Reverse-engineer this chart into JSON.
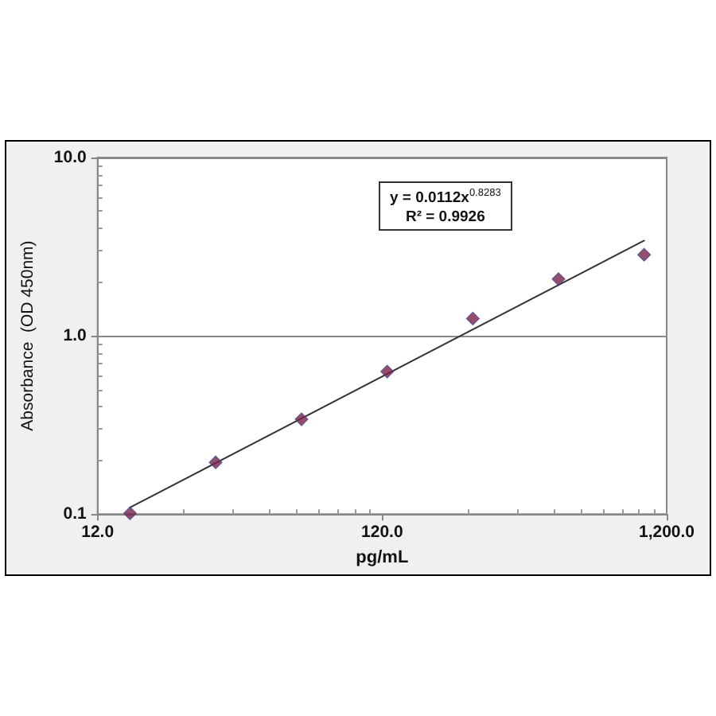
{
  "chart_data": {
    "type": "scatter",
    "xlabel": "pg/mL",
    "ylabel": "Absorbance  (OD 450nm)",
    "annotations": [
      "y = 0.0112x$^{0.8283}$",
      "R² = 0.9926"
    ],
    "log": "xy",
    "grid": "y",
    "marker": "diamond",
    "xlim": [
      12,
      1200
    ],
    "ylim": [
      0.1,
      10
    ],
    "xticks": [
      {
        "value": 12,
        "label": "12.0"
      },
      {
        "value": 24,
        "label": null
      },
      {
        "value": 36,
        "label": null
      },
      {
        "value": 48,
        "label": null
      },
      {
        "value": 60,
        "label": null
      },
      {
        "value": 72,
        "label": null
      },
      {
        "value": 84,
        "label": null
      },
      {
        "value": 96,
        "label": null
      },
      {
        "value": 108,
        "label": null
      },
      {
        "value": 120,
        "label": "120.0"
      },
      {
        "value": 240,
        "label": null
      },
      {
        "value": 360,
        "label": null
      },
      {
        "value": 480,
        "label": null
      },
      {
        "value": 600,
        "label": null
      },
      {
        "value": 720,
        "label": null
      },
      {
        "value": 840,
        "label": null
      },
      {
        "value": 960,
        "label": null
      },
      {
        "value": 1080,
        "label": null
      },
      {
        "value": 1200,
        "label": "1,200.0"
      }
    ],
    "yticks": [
      {
        "value": 0.1,
        "label": "0.1"
      },
      {
        "value": 0.2,
        "label": null
      },
      {
        "value": 0.3,
        "label": null
      },
      {
        "value": 0.4,
        "label": null
      },
      {
        "value": 0.5,
        "label": null
      },
      {
        "value": 0.6,
        "label": null
      },
      {
        "value": 0.7,
        "label": null
      },
      {
        "value": 0.8,
        "label": null
      },
      {
        "value": 0.9,
        "label": null
      },
      {
        "value": 1,
        "label": "1.0"
      },
      {
        "value": 2,
        "label": null
      },
      {
        "value": 3,
        "label": null
      },
      {
        "value": 4,
        "label": null
      },
      {
        "value": 5,
        "label": null
      },
      {
        "value": 6,
        "label": null
      },
      {
        "value": 7,
        "label": null
      },
      {
        "value": 8,
        "label": null
      },
      {
        "value": 9,
        "label": null
      },
      {
        "value": 10,
        "label": "10.0"
      }
    ],
    "series": [
      {
        "color": "#7a2048",
        "x": [
          15.6,
          31.2,
          62.5,
          125,
          250,
          500,
          1000
        ],
        "values": [
          0.101,
          0.195,
          0.34,
          0.63,
          1.25,
          2.08,
          2.85
        ]
      },
      {
        "type": "line",
        "color": "#333333",
        "marker": "none",
        "x": [
          15.6,
          1000
        ],
        "values": [
          0.109,
          3.42
        ]
      }
    ]
  }
}
